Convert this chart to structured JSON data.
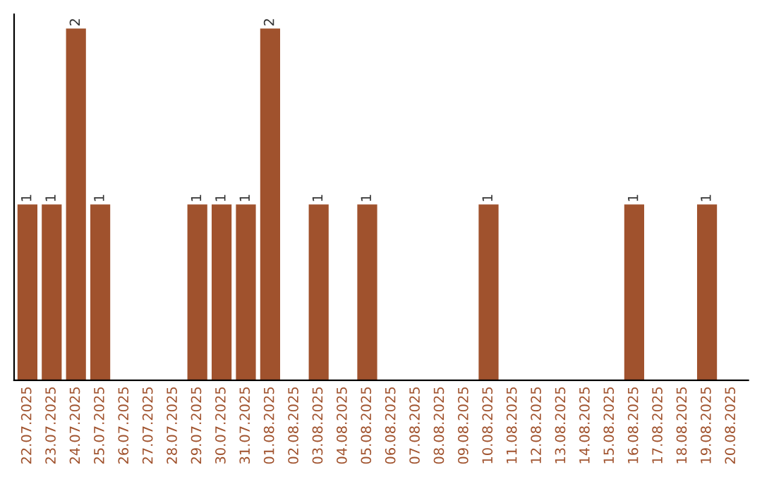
{
  "chart_data": {
    "type": "bar",
    "categories": [
      "22.07.2025",
      "23.07.2025",
      "24.07.2025",
      "25.07.2025",
      "26.07.2025",
      "27.07.2025",
      "28.07.2025",
      "29.07.2025",
      "30.07.2025",
      "31.07.2025",
      "01.08.2025",
      "02.08.2025",
      "03.08.2025",
      "04.08.2025",
      "05.08.2025",
      "06.08.2025",
      "07.08.2025",
      "08.08.2025",
      "09.08.2025",
      "10.08.2025",
      "11.08.2025",
      "12.08.2025",
      "13.08.2025",
      "14.08.2025",
      "15.08.2025",
      "16.08.2025",
      "17.08.2025",
      "18.08.2025",
      "19.08.2025",
      "20.08.2025"
    ],
    "values": [
      1,
      1,
      2,
      1,
      0,
      0,
      0,
      1,
      1,
      1,
      2,
      0,
      1,
      0,
      1,
      0,
      0,
      0,
      0,
      1,
      0,
      0,
      0,
      0,
      0,
      1,
      0,
      0,
      1,
      0
    ],
    "value_labels": [
      "1",
      "1",
      "2",
      "1",
      null,
      null,
      null,
      "1",
      "1",
      "1",
      "2",
      null,
      "1",
      null,
      "1",
      null,
      null,
      null,
      null,
      "1",
      null,
      null,
      null,
      null,
      null,
      "1",
      null,
      null,
      "1",
      null
    ],
    "color": "#a0522d",
    "tick_labels": "x",
    "grid": false,
    "legend": false
  }
}
